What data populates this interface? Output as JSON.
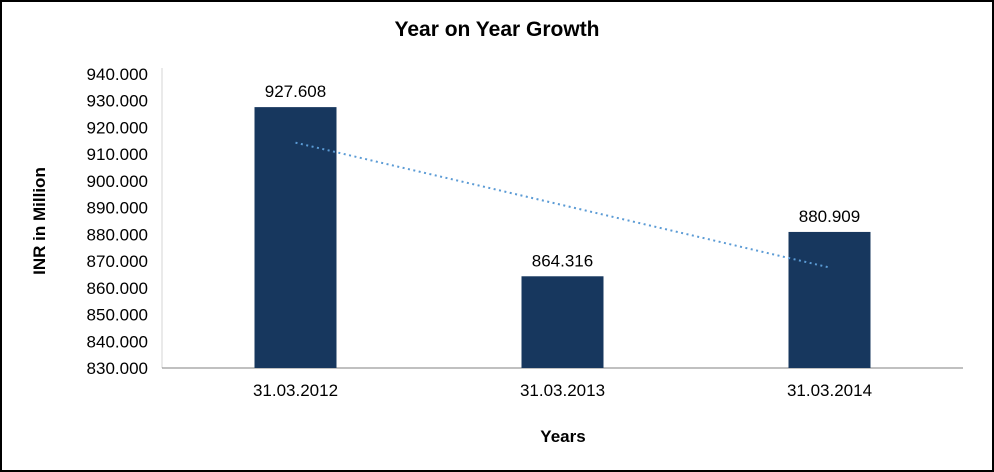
{
  "frame": {
    "background": "#ffffff",
    "border_color": "#000000"
  },
  "chart_data": {
    "type": "bar",
    "title": "Year on Year Growth",
    "xlabel": "Years",
    "ylabel": "INR in Million",
    "categories": [
      "31.03.2012",
      "31.03.2013",
      "31.03.2014"
    ],
    "values": [
      927.608,
      864.316,
      880.909
    ],
    "data_labels": [
      "927.608",
      "864.316",
      "880.909"
    ],
    "ylim": [
      830,
      940
    ],
    "ytick_step": 10,
    "ytick_labels": [
      "830.000",
      "840.000",
      "850.000",
      "860.000",
      "870.000",
      "880.000",
      "890.000",
      "900.000",
      "910.000",
      "920.000",
      "930.000",
      "940.000"
    ],
    "grid": false,
    "legend": "none",
    "bar_color": "#17375E",
    "axis_line_color": "#808080",
    "y_axis_line_color": "#D6D6D6",
    "trendline": {
      "style": "dotted",
      "color": "#5B9BD5",
      "start_value": 914.3,
      "end_value": 867.6
    }
  }
}
